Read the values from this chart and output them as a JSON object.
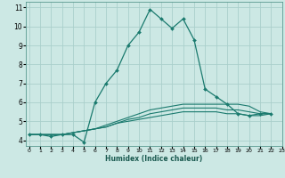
{
  "title": "",
  "xlabel": "Humidex (Indice chaleur)",
  "background_color": "#cce8e4",
  "grid_color": "#aacfcb",
  "line_color": "#1a7a6e",
  "series": [
    [
      4.3,
      4.3,
      4.2,
      4.3,
      4.3,
      3.9,
      6.0,
      7.0,
      7.7,
      9.0,
      9.7,
      10.9,
      10.4,
      9.9,
      10.4,
      9.3,
      6.7,
      6.3,
      5.9,
      5.4,
      5.3,
      5.4,
      5.4
    ],
    [
      4.3,
      4.3,
      4.3,
      4.3,
      4.4,
      4.5,
      4.6,
      4.8,
      5.0,
      5.2,
      5.4,
      5.6,
      5.7,
      5.8,
      5.9,
      5.9,
      5.9,
      5.9,
      5.9,
      5.9,
      5.8,
      5.5,
      5.4
    ],
    [
      4.3,
      4.3,
      4.3,
      4.3,
      4.4,
      4.5,
      4.6,
      4.7,
      4.9,
      5.1,
      5.2,
      5.4,
      5.5,
      5.6,
      5.7,
      5.7,
      5.7,
      5.7,
      5.6,
      5.6,
      5.5,
      5.4,
      5.4
    ],
    [
      4.3,
      4.3,
      4.3,
      4.3,
      4.4,
      4.5,
      4.6,
      4.7,
      4.9,
      5.0,
      5.1,
      5.2,
      5.3,
      5.4,
      5.5,
      5.5,
      5.5,
      5.5,
      5.4,
      5.4,
      5.3,
      5.3,
      5.4
    ]
  ],
  "x_values": [
    0,
    1,
    2,
    3,
    4,
    5,
    6,
    7,
    8,
    9,
    10,
    11,
    12,
    13,
    14,
    15,
    16,
    17,
    18,
    19,
    20,
    21,
    22
  ],
  "ylim": [
    3.7,
    11.3
  ],
  "yticks": [
    4,
    5,
    6,
    7,
    8,
    9,
    10,
    11
  ],
  "xlim": [
    -0.3,
    22.3
  ],
  "xticks": [
    0,
    1,
    2,
    3,
    4,
    5,
    6,
    7,
    8,
    9,
    10,
    11,
    12,
    13,
    14,
    15,
    16,
    17,
    18,
    19,
    20,
    21,
    22,
    23
  ]
}
